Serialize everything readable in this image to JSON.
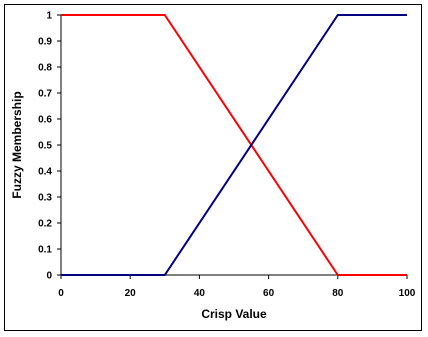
{
  "chart_data": {
    "type": "line",
    "title": "",
    "xlabel": "Crisp Value",
    "ylabel": "Fuzzy Membership",
    "xlim": [
      0,
      100
    ],
    "ylim": [
      0,
      1
    ],
    "xticks": [
      "0",
      "20",
      "40",
      "60",
      "80",
      "100"
    ],
    "yticks": [
      "0",
      "0.1",
      "0.2",
      "0.3",
      "0.4",
      "0.5",
      "0.6",
      "0.7",
      "0.8",
      "0.9",
      "1"
    ],
    "grid": false,
    "legend": "none",
    "series": [
      {
        "color": "#ff0000",
        "x": [
          0,
          30,
          80,
          100
        ],
        "y": [
          1,
          1,
          0,
          0
        ]
      },
      {
        "color": "#000080",
        "x": [
          0,
          30,
          80,
          100
        ],
        "y": [
          0,
          0,
          1,
          1
        ]
      }
    ]
  }
}
